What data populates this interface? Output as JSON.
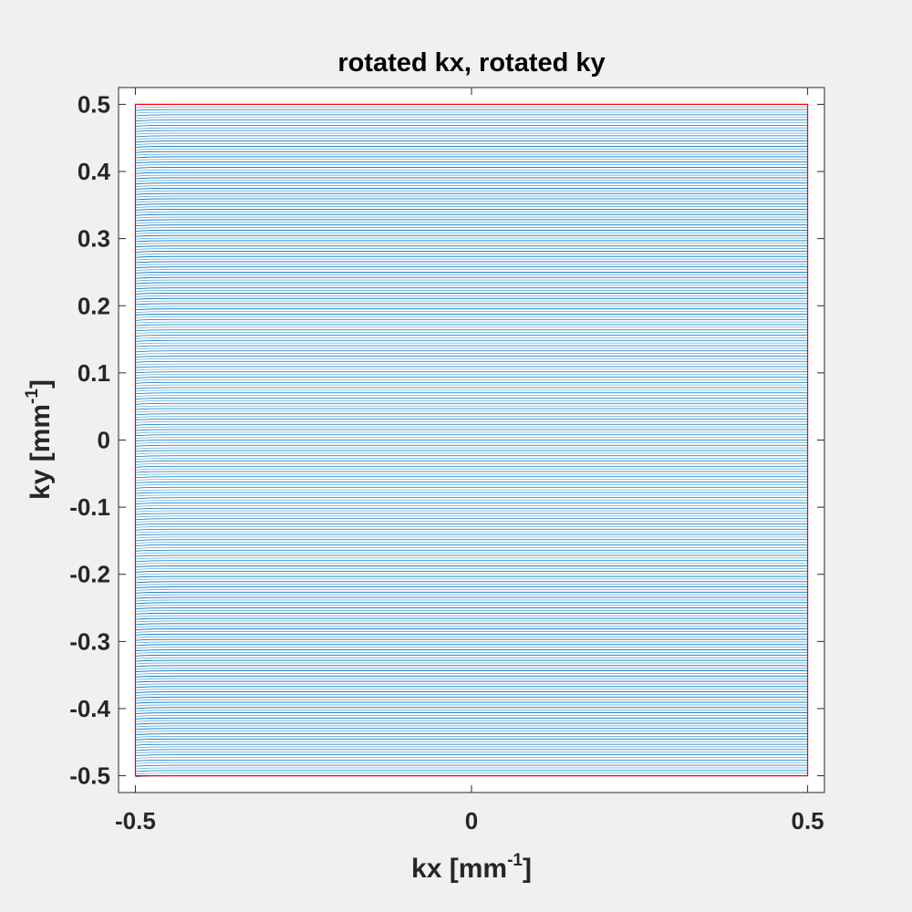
{
  "chart_data": {
    "type": "line",
    "title": "rotated kx, rotated ky",
    "xlabel": {
      "base": "kx [mm",
      "sup": "-1",
      "close": "]"
    },
    "ylabel": {
      "base": "ky [mm",
      "sup": "-1",
      "close": "]"
    },
    "xlim": [
      -0.525,
      0.525
    ],
    "ylim": [
      -0.525,
      0.525
    ],
    "xticks": [
      -0.5,
      0,
      0.5
    ],
    "xtick_labels": [
      "-0.5",
      "0",
      "0.5"
    ],
    "yticks": [
      -0.5,
      -0.4,
      -0.3,
      -0.2,
      -0.1,
      0,
      0.1,
      0.2,
      0.3,
      0.4,
      0.5
    ],
    "ytick_labels": [
      "-0.5",
      "-0.4",
      "-0.3",
      "-0.2",
      "-0.1",
      "0",
      "0.1",
      "0.2",
      "0.3",
      "0.4",
      "0.5"
    ],
    "grid": false,
    "series": [
      {
        "kind": "trajectory-lines",
        "color": "#0072bd",
        "x_range": [
          -0.5,
          0.5
        ],
        "ky_start": -0.5,
        "ky_end": 0.4961,
        "ky_step": 0.00390625,
        "line_count": 256
      },
      {
        "kind": "boundary-box",
        "color": "#ff0000",
        "x": [
          -0.5,
          0.5,
          0.5,
          -0.5,
          -0.5
        ],
        "y": [
          -0.5,
          -0.5,
          0.5,
          0.5,
          -0.5
        ]
      }
    ],
    "colors": {
      "background": "#f0f0f0",
      "axes": "#ffffff",
      "axis_line": "#262626",
      "line_alt": "#5eaee0"
    }
  }
}
